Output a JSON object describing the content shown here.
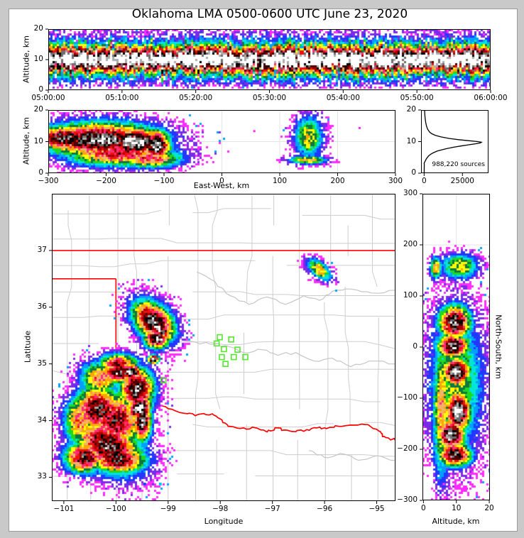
{
  "title": "Oklahoma LMA 0500-0600 UTC June 23, 2020",
  "colormap": {
    "note": "lightning source density, low to high",
    "levels": [
      "#FF2BFF",
      "#7B2BE8",
      "#2238FF",
      "#00A0FF",
      "#00E5D8",
      "#1FD822",
      "#0E7840",
      "#FFFF00",
      "#FFA500",
      "#F2B26C",
      "#FF2D78",
      "#EE1111",
      "#A80000",
      "#4A0000",
      "#000000",
      "#6E6E6E",
      "#ABABAB",
      "#FFFFFF"
    ]
  },
  "figure": {
    "background": "#FFFFFF",
    "frame_color": "#C9C9C9"
  },
  "chart_data": [
    {
      "id": "time-height",
      "type": "heatmap",
      "xlabel": "",
      "ylabel": "Altitude, km",
      "x_range": [
        0,
        3600
      ],
      "y_range": [
        0,
        20
      ],
      "x_ticks": {
        "values": [
          0,
          600,
          1200,
          1800,
          2400,
          3000,
          3600
        ],
        "labels": [
          "05:00:00",
          "05:10:00",
          "05:20:00",
          "05:30:00",
          "05:40:00",
          "05:50:00",
          "06:00:00"
        ]
      },
      "y_ticks": {
        "values": [
          0,
          10,
          20
        ],
        "labels": [
          "0",
          "10",
          "20"
        ]
      },
      "density": {
        "mode": "band",
        "center": 10,
        "sigma": 2.8,
        "skirt_sigma": 6.0,
        "skirt_amp": 0.22,
        "seed": 11
      }
    },
    {
      "id": "east-west-height",
      "type": "heatmap",
      "xlabel": "East-West, km",
      "ylabel": "Altitude, km",
      "x_range": [
        -300,
        300
      ],
      "y_range": [
        0,
        20
      ],
      "x_ticks": {
        "values": [
          -300,
          -200,
          -100,
          0,
          100,
          200,
          300
        ],
        "labels": [
          "−300",
          "−200",
          "−100",
          "0",
          "100",
          "200",
          "300"
        ]
      },
      "y_ticks": {
        "values": [
          0,
          10,
          20
        ],
        "labels": [
          "0",
          "10",
          "20"
        ]
      },
      "grid": {
        "x": [
          -200,
          -100,
          0,
          100,
          200
        ],
        "y": [
          10
        ]
      },
      "density": {
        "mode": "blobs",
        "seed": 21,
        "blobs": [
          {
            "x": -210,
            "y": 10.6,
            "sx": 68,
            "sy": 3.6,
            "amp": 0.94
          },
          {
            "x": -150,
            "y": 9.8,
            "sx": 34,
            "sy": 3.1,
            "amp": 1.04
          },
          {
            "x": -113,
            "y": 8.8,
            "sx": 16,
            "sy": 3.2,
            "amp": 1.02
          },
          {
            "x": -272,
            "y": 11.0,
            "sx": 38,
            "sy": 2.7,
            "amp": 0.88
          },
          {
            "x": -180,
            "y": 6.2,
            "sx": 62,
            "sy": 2.6,
            "amp": 0.72
          },
          {
            "x": -125,
            "y": 4.6,
            "sx": 38,
            "sy": 1.9,
            "amp": 0.66
          },
          {
            "x": 150,
            "y": 11.5,
            "sx": 16,
            "sy": 4.2,
            "amp": 0.5,
            "cap": 0.44
          },
          {
            "x": 149,
            "y": 4.2,
            "sx": 21,
            "sy": 0.9,
            "amp": 0.55,
            "cap": 0.52
          }
        ]
      },
      "dots": [
        {
          "x": -41,
          "y": 4.3
        },
        {
          "x": 56,
          "y": 13.3
        },
        {
          "x": 100,
          "y": 3.5
        },
        {
          "x": 238,
          "y": 14.3
        }
      ],
      "dot_color": "#FF2BFF"
    },
    {
      "id": "altitude-histogram",
      "type": "line",
      "xlabel": "",
      "ylabel": "",
      "x_range": [
        -2000,
        42000
      ],
      "y_range": [
        0,
        20
      ],
      "x_ticks": {
        "values": [
          0,
          25000
        ],
        "labels": [
          "0",
          "25000"
        ]
      },
      "y_ticks": {
        "values": [
          0,
          10,
          20
        ],
        "labels": [
          "0",
          "10",
          "20"
        ]
      },
      "annotation": "988,220 sources",
      "total_sources": 988220,
      "curve": [
        [
          20,
          300
        ],
        [
          19,
          420
        ],
        [
          18,
          560
        ],
        [
          17,
          760
        ],
        [
          16,
          1050
        ],
        [
          15,
          1500
        ],
        [
          14,
          2200
        ],
        [
          13,
          3600
        ],
        [
          12.5,
          5000
        ],
        [
          12,
          7200
        ],
        [
          11.5,
          10800
        ],
        [
          11,
          16500
        ],
        [
          10.6,
          22500
        ],
        [
          10.3,
          29000
        ],
        [
          10,
          35000
        ],
        [
          9.8,
          37400
        ],
        [
          9.6,
          36800
        ],
        [
          9.3,
          33500
        ],
        [
          9,
          29500
        ],
        [
          8.6,
          24000
        ],
        [
          8.2,
          19000
        ],
        [
          7.8,
          15000
        ],
        [
          7.4,
          11500
        ],
        [
          7,
          8600
        ],
        [
          6.5,
          6100
        ],
        [
          6,
          4300
        ],
        [
          5.5,
          3000
        ],
        [
          5,
          2100
        ],
        [
          4.5,
          1400
        ],
        [
          4,
          900
        ],
        [
          3.7,
          550
        ],
        [
          3.4,
          250
        ],
        [
          3.1,
          60
        ],
        [
          2.7,
          150
        ],
        [
          2,
          80
        ],
        [
          0,
          60
        ]
      ]
    },
    {
      "id": "plan-view-map",
      "type": "heatmap",
      "xlabel": "Longitude",
      "ylabel": "Latitude",
      "x_range": [
        -101.23,
        -94.64
      ],
      "y_range": [
        32.58,
        38.0
      ],
      "x_ticks": {
        "values": [
          -101,
          -100,
          -99,
          -98,
          -97,
          -96,
          -95
        ],
        "labels": [
          "−101",
          "−100",
          "−99",
          "−98",
          "−97",
          "−96",
          "−95"
        ]
      },
      "y_ticks": {
        "values": [
          33,
          34,
          35,
          36,
          37
        ],
        "labels": [
          "33",
          "34",
          "35",
          "36",
          "37"
        ]
      },
      "borders": {
        "state_color": "#FF0000",
        "kansas_lat": 37.0,
        "panhandle_lat": 36.5,
        "meridian_lon": -100.0,
        "meridian_lat_range": [
          34.56,
          36.5
        ],
        "red_river": [
          [
            -100.0,
            34.56
          ],
          [
            -99.8,
            34.47
          ],
          [
            -99.55,
            34.4
          ],
          [
            -99.26,
            34.3
          ],
          [
            -99.0,
            34.21
          ],
          [
            -98.7,
            34.13
          ],
          [
            -98.45,
            34.1
          ],
          [
            -98.15,
            34.12
          ],
          [
            -98.0,
            34.03
          ],
          [
            -97.85,
            33.9
          ],
          [
            -97.55,
            33.87
          ],
          [
            -97.32,
            33.87
          ],
          [
            -97.1,
            33.8
          ],
          [
            -96.9,
            33.87
          ],
          [
            -96.68,
            33.82
          ],
          [
            -96.4,
            33.81
          ],
          [
            -96.15,
            33.87
          ],
          [
            -95.9,
            33.88
          ],
          [
            -95.59,
            33.91
          ],
          [
            -95.23,
            33.93
          ],
          [
            -94.95,
            33.81
          ],
          [
            -94.86,
            33.72
          ],
          [
            -94.64,
            33.65
          ]
        ]
      },
      "rivers": [
        [
          [
            -98.45,
            36.62
          ],
          [
            -98.1,
            36.45
          ],
          [
            -97.8,
            36.2
          ],
          [
            -97.45,
            36.05
          ],
          [
            -97.1,
            36.18
          ],
          [
            -96.75,
            36.05
          ],
          [
            -96.4,
            36.2
          ],
          [
            -96.1,
            36.12
          ],
          [
            -95.85,
            36.28
          ],
          [
            -95.5,
            36.32
          ],
          [
            -95.1,
            36.25
          ],
          [
            -94.64,
            36.3
          ]
        ],
        [
          [
            -99.0,
            35.52
          ],
          [
            -98.6,
            35.4
          ],
          [
            -98.2,
            35.35
          ],
          [
            -97.9,
            35.32
          ],
          [
            -97.55,
            35.2
          ],
          [
            -97.2,
            35.25
          ],
          [
            -96.9,
            35.15
          ],
          [
            -96.55,
            35.2
          ],
          [
            -96.2,
            35.05
          ],
          [
            -95.85,
            35.1
          ],
          [
            -95.5,
            34.95
          ],
          [
            -95.15,
            35.05
          ],
          [
            -94.64,
            35.0
          ]
        ],
        [
          [
            -96.3,
            33.47
          ],
          [
            -96.0,
            33.35
          ],
          [
            -95.7,
            33.42
          ],
          [
            -95.35,
            33.3
          ],
          [
            -95.0,
            33.38
          ],
          [
            -94.64,
            33.3
          ]
        ]
      ],
      "county_grid": {
        "color": "#CDCDCD",
        "seed": 7
      },
      "stations": {
        "marker": "open-square",
        "color": "#55E62E",
        "points": [
          [
            -98.01,
            35.47
          ],
          [
            -97.79,
            35.43
          ],
          [
            -98.07,
            35.36
          ],
          [
            -97.93,
            35.26
          ],
          [
            -97.67,
            35.25
          ],
          [
            -97.97,
            35.12
          ],
          [
            -97.74,
            35.12
          ],
          [
            -97.52,
            35.12
          ],
          [
            -97.9,
            35.0
          ],
          [
            -99.35,
            34.71
          ],
          [
            -99.09,
            34.71
          ]
        ]
      },
      "density": {
        "mode": "blobs",
        "seed": 33,
        "blobs": [
          {
            "x": -99.28,
            "y": 35.75,
            "sx": 0.3,
            "sy": 0.2,
            "rot": -38,
            "amp": 0.93
          },
          {
            "x": -99.18,
            "y": 35.62,
            "sx": 0.2,
            "sy": 0.06,
            "rot": -33,
            "amp": 1.05
          },
          {
            "x": -99.22,
            "y": 35.45,
            "sx": 0.16,
            "sy": 0.12,
            "amp": 0.95
          },
          {
            "x": -99.15,
            "y": 35.42,
            "sx": 0.05,
            "sy": 0.045,
            "amp": 1.1
          },
          {
            "x": -99.28,
            "y": 35.08,
            "sx": 0.07,
            "sy": 0.05,
            "amp": 1.05
          },
          {
            "x": -99.72,
            "y": 34.86,
            "sx": 0.14,
            "sy": 0.09,
            "amp": 1.08
          },
          {
            "x": -99.95,
            "y": 34.85,
            "sx": 0.22,
            "sy": 0.13,
            "amp": 0.9
          },
          {
            "x": -99.6,
            "y": 34.55,
            "sx": 0.22,
            "sy": 0.25,
            "amp": 0.92
          },
          {
            "x": -99.55,
            "y": 34.22,
            "sx": 0.16,
            "sy": 0.12,
            "rot": 30,
            "amp": 1.08
          },
          {
            "x": -99.5,
            "y": 34.0,
            "sx": 0.12,
            "sy": 0.25,
            "amp": 0.95
          },
          {
            "x": -100.35,
            "y": 34.2,
            "sx": 0.3,
            "sy": 0.28,
            "amp": 0.85
          },
          {
            "x": -100.15,
            "y": 33.55,
            "sx": 0.45,
            "sy": 0.28,
            "rot": -25,
            "amp": 0.88
          },
          {
            "x": -100.6,
            "y": 33.35,
            "sx": 0.25,
            "sy": 0.18,
            "amp": 0.85
          },
          {
            "x": -99.95,
            "y": 33.3,
            "sx": 0.35,
            "sy": 0.15,
            "amp": 0.85
          },
          {
            "x": -100.0,
            "y": 34.0,
            "sx": 0.35,
            "sy": 0.35,
            "amp": 0.78
          },
          {
            "x": -100.7,
            "y": 34.0,
            "sx": 0.2,
            "sy": 0.3,
            "amp": 0.6
          },
          {
            "x": -100.3,
            "y": 34.75,
            "sx": 0.25,
            "sy": 0.2,
            "amp": 0.6
          },
          {
            "x": -99.95,
            "y": 35.0,
            "sx": 0.25,
            "sy": 0.12,
            "amp": 0.75
          },
          {
            "x": -96.1,
            "y": 36.66,
            "sx": 0.17,
            "sy": 0.09,
            "rot": -35,
            "amp": 0.55,
            "cap": 0.5
          }
        ]
      },
      "dots": [
        {
          "x": -99.45,
          "y": 32.88,
          "color": "#2244FF"
        },
        {
          "x": -99.15,
          "y": 32.88,
          "color": "#00CCEE"
        }
      ]
    },
    {
      "id": "north-south-height",
      "type": "heatmap",
      "xlabel": "Altitude, km",
      "ylabel_right": "North-South, km",
      "x_range": [
        -0.3,
        20.2
      ],
      "y_range": [
        -300,
        300
      ],
      "x_ticks": {
        "values": [
          0,
          10,
          20
        ],
        "labels": [
          "0",
          "10",
          "20"
        ]
      },
      "y_ticks": {
        "values": [
          -300,
          -200,
          -100,
          0,
          100,
          200,
          300
        ],
        "labels": [
          "−300",
          "−200",
          "−100",
          "0",
          "100",
          "200",
          "300"
        ]
      },
      "grid": {
        "x": [
          10
        ],
        "y": [
          -200,
          -100,
          0,
          100,
          200
        ]
      },
      "density": {
        "mode": "blobs",
        "seed": 44,
        "blobs": [
          {
            "x": 9.5,
            "y": 48,
            "sx": 3.2,
            "sy": 22,
            "amp": 0.95
          },
          {
            "x": 10,
            "y": 44,
            "sx": 1.6,
            "sy": 7,
            "amp": 1.04
          },
          {
            "x": 9,
            "y": 2,
            "sx": 3.2,
            "sy": 16,
            "amp": 0.97
          },
          {
            "x": 10,
            "y": -48,
            "sx": 2.8,
            "sy": 18,
            "amp": 1.04
          },
          {
            "x": 10.5,
            "y": -125,
            "sx": 2.6,
            "sy": 26,
            "amp": 1.05
          },
          {
            "x": 8.5,
            "y": -172,
            "sx": 2.8,
            "sy": 20,
            "amp": 0.99
          },
          {
            "x": 9.5,
            "y": -210,
            "sx": 3.4,
            "sy": 16,
            "amp": 0.9
          },
          {
            "x": 10,
            "y": -70,
            "sx": 5.5,
            "sy": 95,
            "amp": 0.42
          },
          {
            "x": 5.5,
            "y": -120,
            "sx": 1.8,
            "sy": 90,
            "amp": 0.55
          },
          {
            "x": 3.8,
            "y": 155,
            "sx": 1.1,
            "sy": 14,
            "amp": 0.6,
            "cap": 0.5
          },
          {
            "x": 11,
            "y": 158,
            "sx": 3.6,
            "sy": 16,
            "amp": 0.5,
            "cap": 0.42
          }
        ]
      },
      "dots": [
        {
          "x": 8,
          "y": -274
        },
        {
          "x": 10.5,
          "y": -271
        },
        {
          "x": 13.2,
          "y": -277
        },
        {
          "x": 6.2,
          "y": -268
        }
      ],
      "dot_color": "#FF2BFF"
    }
  ]
}
